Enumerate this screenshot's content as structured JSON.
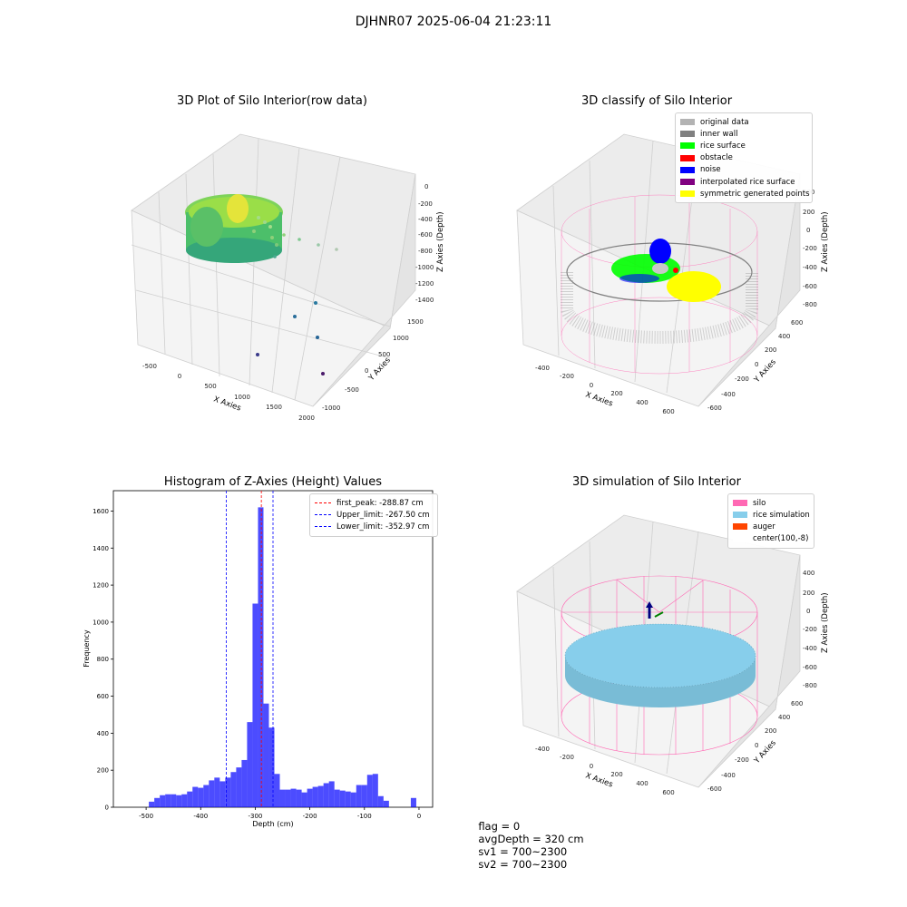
{
  "suptitle": "DJHNR07 2025-06-04 21:23:11",
  "panels": {
    "raw": {
      "title": "3D Plot of Silo Interior(row data)",
      "xlabel": "X Axies",
      "ylabel": "Y Axies",
      "zlabel": "Z Axies (Depth)",
      "xticks": [
        "-500",
        "0",
        "500",
        "1000",
        "1500",
        "2000"
      ],
      "yticks": [
        "-1000",
        "-500",
        "0",
        "500",
        "1000",
        "1500"
      ],
      "zticks": [
        "0",
        "-200",
        "-400",
        "-600",
        "-800",
        "-1000",
        "-1200",
        "-1400"
      ]
    },
    "classify": {
      "title": "3D classify of Silo Interior",
      "xlabel": "X Axies",
      "ylabel": "Y Axies",
      "zlabel": "Z Axies (Depth)",
      "xticks": [
        "-400",
        "-200",
        "0",
        "200",
        "400",
        "600"
      ],
      "yticks": [
        "-600",
        "-400",
        "-200",
        "0",
        "200",
        "400",
        "600"
      ],
      "zticks": [
        "400",
        "200",
        "0",
        "-200",
        "-400",
        "-600",
        "-800"
      ],
      "legend": [
        {
          "label": "original data",
          "color": "#b3b3b3"
        },
        {
          "label": "inner wall",
          "color": "#808080"
        },
        {
          "label": "rice surface",
          "color": "#00ff00"
        },
        {
          "label": "obstacle",
          "color": "#ff0000"
        },
        {
          "label": "noise",
          "color": "#0000ff"
        },
        {
          "label": "interpolated rice surface",
          "color": "#800080"
        },
        {
          "label": "symmetric generated points",
          "color": "#ffff00"
        }
      ]
    },
    "simulation": {
      "title": "3D simulation of Silo Interior",
      "xlabel": "X Axies",
      "ylabel": "Y Axies",
      "zlabel": "Z Axies (Depth)",
      "xticks": [
        "-400",
        "-200",
        "0",
        "200",
        "400",
        "600"
      ],
      "yticks": [
        "-600",
        "-400",
        "-200",
        "0",
        "200",
        "400",
        "600"
      ],
      "zticks": [
        "400",
        "200",
        "0",
        "-200",
        "-400",
        "-600",
        "-800"
      ],
      "legend": [
        {
          "label": "silo",
          "color": "#ff69b4"
        },
        {
          "label": "rice simulation",
          "color": "#87ceeb"
        },
        {
          "label": "auger",
          "color": "#ff4500"
        },
        {
          "label": "center(100,-8)",
          "color": "#ffffff"
        }
      ]
    }
  },
  "chart_data": {
    "type": "bar",
    "title": "Histogram of Z-Axies (Height) Values",
    "xlabel": "Depth (cm)",
    "ylabel": "Frequency",
    "xlim": [
      -560,
      25
    ],
    "ylim": [
      0,
      1710
    ],
    "bin_width": 10,
    "xticks": [
      -500,
      -400,
      -300,
      -200,
      -100,
      0
    ],
    "yticks": [
      0,
      200,
      400,
      600,
      800,
      1000,
      1200,
      1400,
      1600
    ],
    "color": "#0000ff",
    "bins_start": [
      -495,
      -485,
      -475,
      -465,
      -455,
      -445,
      -435,
      -425,
      -415,
      -405,
      -395,
      -385,
      -375,
      -365,
      -355,
      -345,
      -335,
      -325,
      -315,
      -305,
      -295,
      -285,
      -275,
      -265,
      -255,
      -245,
      -235,
      -225,
      -215,
      -205,
      -195,
      -185,
      -175,
      -165,
      -155,
      -145,
      -135,
      -125,
      -115,
      -105,
      -95,
      -85,
      -75,
      -65,
      -55,
      -45,
      -35,
      -25,
      -15,
      -5
    ],
    "values": [
      30,
      50,
      65,
      70,
      70,
      65,
      70,
      85,
      110,
      105,
      120,
      145,
      160,
      140,
      160,
      190,
      215,
      255,
      460,
      1100,
      1620,
      560,
      430,
      180,
      95,
      95,
      100,
      95,
      80,
      100,
      110,
      115,
      130,
      140,
      95,
      90,
      85,
      80,
      120,
      120,
      175,
      180,
      60,
      35,
      0,
      0,
      0,
      0,
      50,
      0
    ],
    "vlines": [
      {
        "label": "first_peak: -288.87 cm",
        "x": -288.87,
        "color": "#ff0000"
      },
      {
        "label": "Upper_limit: -267.50 cm",
        "x": -267.5,
        "color": "#0000ff"
      },
      {
        "label": "Lower_limit: -352.97 cm",
        "x": -352.97,
        "color": "#0000ff"
      }
    ]
  },
  "status": {
    "flag": "flag = 0",
    "avg_depth": "avgDepth = 320 cm",
    "sv1": "sv1 = 700~2300",
    "sv2": "sv2 = 700~2300"
  }
}
